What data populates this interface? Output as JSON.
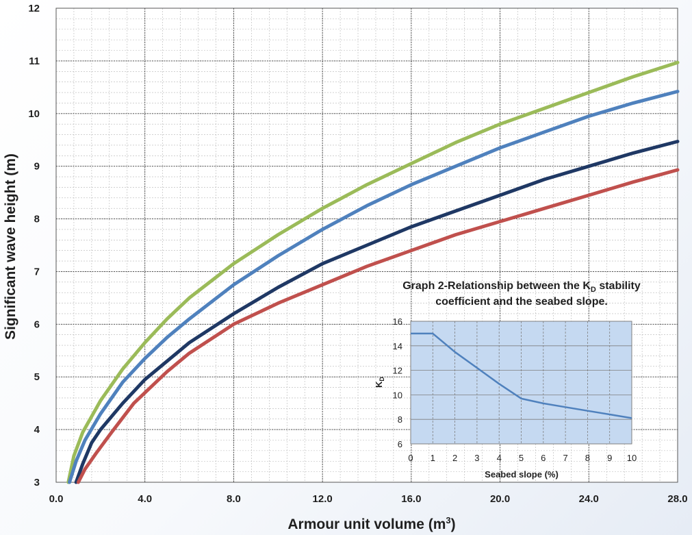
{
  "chart_data": [
    {
      "type": "line",
      "xlabel": "Armour unit volume (m",
      "xlabel_sup": "3",
      "xlabel_close": ")",
      "ylabel": "Significant wave height (m)",
      "xlim": [
        0,
        28
      ],
      "ylim": [
        3,
        12
      ],
      "x_ticks": [
        0,
        4,
        8,
        12,
        16,
        20,
        24,
        28
      ],
      "x_tick_labels": [
        "0.0",
        "4.0",
        "8.0",
        "12.0",
        "16.0",
        "20.0",
        "24.0",
        "28.0"
      ],
      "y_ticks": [
        3,
        4,
        5,
        6,
        7,
        8,
        9,
        10,
        11,
        12
      ],
      "y_tick_labels": [
        "3",
        "4",
        "5",
        "6",
        "7",
        "8",
        "9",
        "10",
        "11",
        "12"
      ],
      "grid": true,
      "series": [
        {
          "color": "#9bbb59",
          "x": [
            0.55,
            0.8,
            1.2,
            2,
            3,
            4,
            5,
            6,
            8,
            10,
            12,
            14,
            16,
            18,
            20,
            22,
            24,
            26,
            28
          ],
          "values": [
            3.0,
            3.5,
            3.95,
            4.55,
            5.15,
            5.65,
            6.1,
            6.5,
            7.15,
            7.7,
            8.2,
            8.65,
            9.05,
            9.45,
            9.8,
            10.1,
            10.4,
            10.7,
            10.97
          ]
        },
        {
          "color": "#4f81bd",
          "x": [
            0.6,
            0.9,
            1.3,
            2,
            3,
            4,
            5,
            6,
            8,
            10,
            12,
            14,
            16,
            18,
            20,
            22,
            24,
            26,
            28
          ],
          "values": [
            3.0,
            3.4,
            3.8,
            4.3,
            4.9,
            5.35,
            5.75,
            6.1,
            6.75,
            7.3,
            7.8,
            8.25,
            8.65,
            9.0,
            9.35,
            9.65,
            9.95,
            10.2,
            10.42
          ]
        },
        {
          "color": "#1f3864",
          "x": [
            0.9,
            1.2,
            1.6,
            2,
            3,
            4,
            5,
            6,
            8,
            10,
            12,
            14,
            16,
            18,
            20,
            22,
            24,
            26,
            28
          ],
          "values": [
            3.0,
            3.35,
            3.75,
            4.0,
            4.5,
            4.95,
            5.3,
            5.65,
            6.2,
            6.7,
            7.15,
            7.5,
            7.85,
            8.15,
            8.45,
            8.75,
            9.0,
            9.25,
            9.47
          ]
        },
        {
          "color": "#c0504d",
          "x": [
            1.0,
            1.3,
            1.8,
            2.5,
            3.5,
            4,
            5,
            6,
            8,
            10,
            12,
            14,
            16,
            18,
            20,
            22,
            24,
            26,
            28
          ],
          "values": [
            3.0,
            3.25,
            3.55,
            3.95,
            4.5,
            4.7,
            5.1,
            5.45,
            6.0,
            6.4,
            6.75,
            7.1,
            7.4,
            7.7,
            7.95,
            8.2,
            8.45,
            8.7,
            8.93
          ]
        }
      ]
    },
    {
      "type": "line",
      "title_line1_prefix": "Graph 2-Relationship between the K",
      "title_sub": "D",
      "title_line1_suffix": " stability",
      "title_line2": "coefficient  and the seabed slope.",
      "xlabel": "Seabed slope (%)",
      "ylabel_main": "K",
      "ylabel_sub": "D",
      "xlim": [
        0,
        10
      ],
      "ylim": [
        6,
        16
      ],
      "x_ticks": [
        0,
        1,
        2,
        3,
        4,
        5,
        6,
        7,
        8,
        9,
        10
      ],
      "x_tick_labels": [
        "0",
        "1",
        "2",
        "3",
        "4",
        "5",
        "6",
        "7",
        "8",
        "9",
        "10"
      ],
      "y_ticks": [
        6,
        8,
        10,
        12,
        14,
        16
      ],
      "y_tick_labels": [
        "6",
        "8",
        "10",
        "12",
        "14",
        "16"
      ],
      "grid": true,
      "plot_bg": "#c5d9f1",
      "series": [
        {
          "color": "#4f81bd",
          "x": [
            0,
            1,
            2,
            3,
            4,
            5,
            6,
            7,
            8,
            9,
            10
          ],
          "values": [
            15.0,
            15.0,
            13.5,
            12.2,
            10.9,
            9.7,
            9.3,
            9.0,
            8.7,
            8.4,
            8.1
          ]
        }
      ]
    }
  ]
}
